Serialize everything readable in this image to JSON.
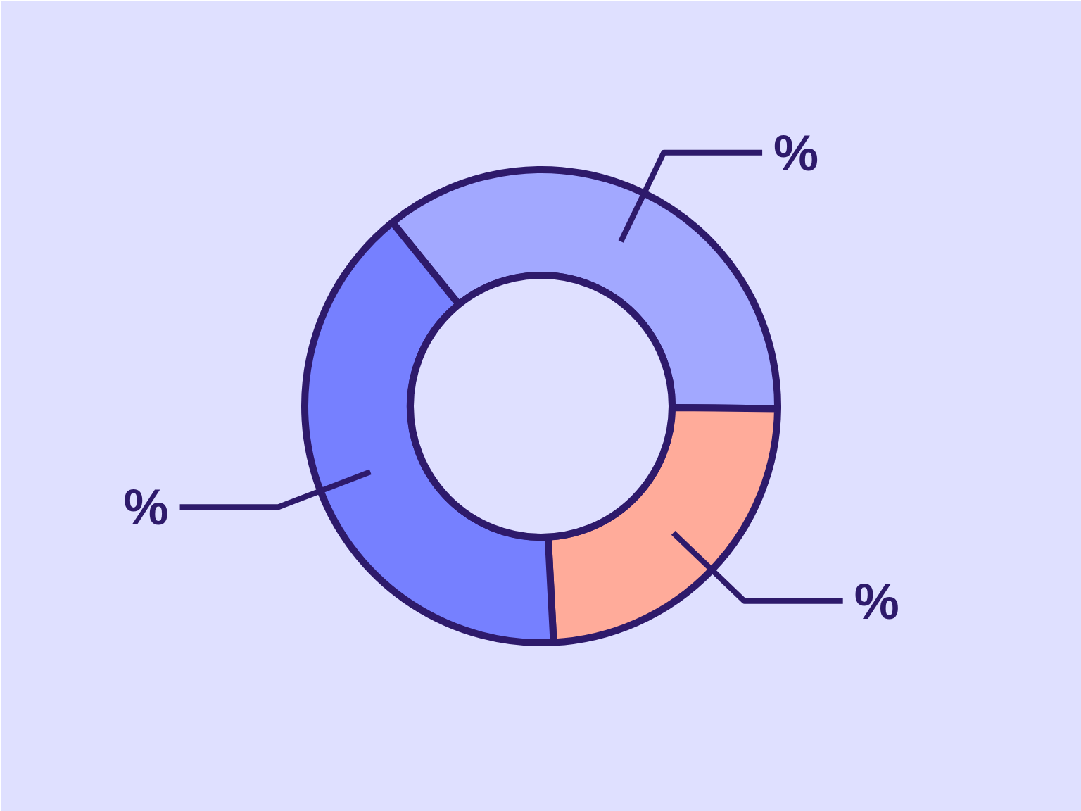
{
  "chart_data": {
    "type": "donut",
    "categories": [
      null,
      null,
      null
    ],
    "values": [
      36,
      24,
      40
    ],
    "colors": [
      "#a2a8ff",
      "#ffab9a",
      "#7680ff"
    ],
    "value_labels": [
      "%",
      "%",
      "%"
    ]
  }
}
